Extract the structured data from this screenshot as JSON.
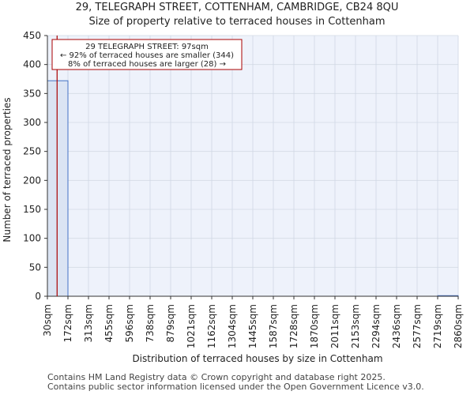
{
  "chart_data": {
    "type": "bar",
    "title": "29, TELEGRAPH STREET, COTTENHAM, CAMBRIDGE, CB24 8QU",
    "subtitle": "Size of property relative to terraced houses in Cottenham",
    "xlabel": "Distribution of terraced houses by size in Cottenham",
    "ylabel": "Number of terraced properties",
    "ylim": [
      0,
      450
    ],
    "yticks": [
      0,
      50,
      100,
      150,
      200,
      250,
      300,
      350,
      400,
      450
    ],
    "categories": [
      "30sqm",
      "172sqm",
      "313sqm",
      "455sqm",
      "596sqm",
      "738sqm",
      "879sqm",
      "1021sqm",
      "1162sqm",
      "1304sqm",
      "1445sqm",
      "1587sqm",
      "1728sqm",
      "1870sqm",
      "2011sqm",
      "2153sqm",
      "2294sqm",
      "2436sqm",
      "2577sqm",
      "2719sqm",
      "2860sqm"
    ],
    "bins": [
      {
        "from": "30sqm",
        "to": "172sqm",
        "value": 372
      },
      {
        "from": "172sqm",
        "to": "313sqm",
        "value": 0
      },
      {
        "from": "313sqm",
        "to": "455sqm",
        "value": 0
      },
      {
        "from": "455sqm",
        "to": "596sqm",
        "value": 0
      },
      {
        "from": "596sqm",
        "to": "738sqm",
        "value": 0
      },
      {
        "from": "738sqm",
        "to": "879sqm",
        "value": 0
      },
      {
        "from": "879sqm",
        "to": "1021sqm",
        "value": 0
      },
      {
        "from": "1021sqm",
        "to": "1162sqm",
        "value": 0
      },
      {
        "from": "1162sqm",
        "to": "1304sqm",
        "value": 0
      },
      {
        "from": "1304sqm",
        "to": "1445sqm",
        "value": 0
      },
      {
        "from": "1445sqm",
        "to": "1587sqm",
        "value": 0
      },
      {
        "from": "1587sqm",
        "to": "1728sqm",
        "value": 0
      },
      {
        "from": "1728sqm",
        "to": "1870sqm",
        "value": 0
      },
      {
        "from": "1870sqm",
        "to": "2011sqm",
        "value": 0
      },
      {
        "from": "2011sqm",
        "to": "2153sqm",
        "value": 0
      },
      {
        "from": "2153sqm",
        "to": "2294sqm",
        "value": 0
      },
      {
        "from": "2294sqm",
        "to": "2436sqm",
        "value": 0
      },
      {
        "from": "2436sqm",
        "to": "2577sqm",
        "value": 0
      },
      {
        "from": "2577sqm",
        "to": "2719sqm",
        "value": 0
      },
      {
        "from": "2719sqm",
        "to": "2860sqm",
        "value": 1
      }
    ],
    "marker": {
      "value_sqm": 97,
      "color": "#aa0000",
      "annotation": [
        "29 TELEGRAPH STREET: 97sqm",
        "← 92% of terraced houses are smaller (344)",
        "8% of terraced houses are larger (28) →"
      ]
    },
    "grid": true,
    "bar_color": "#dbe4f3",
    "bar_edge_color": "#4472c4",
    "plot_background": "#eef2fb"
  },
  "footer": {
    "line1": "Contains HM Land Registry data © Crown copyright and database right 2025.",
    "line2": "Contains public sector information licensed under the Open Government Licence v3.0."
  }
}
